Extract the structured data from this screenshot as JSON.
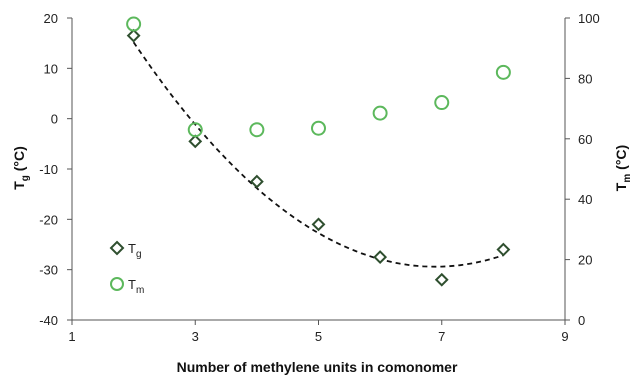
{
  "chart_data": {
    "type": "scatter",
    "xlabel": "Number of methylene units in comonomer",
    "ylabel_left": {
      "main": "T",
      "sub": "g",
      "unit": " (°C)"
    },
    "ylabel_right": {
      "main": "T",
      "sub": "m",
      "unit": " (°C)"
    },
    "xlim": [
      1,
      9
    ],
    "xticks": [
      1,
      3,
      5,
      7,
      9
    ],
    "ylim_left": [
      -40,
      20
    ],
    "yticks_left": [
      -40,
      -30,
      -20,
      -10,
      0,
      10,
      20
    ],
    "ylim_right": [
      0,
      100
    ],
    "yticks_right": [
      0,
      20,
      40,
      60,
      80,
      100
    ],
    "grid": false,
    "legend_position": "left",
    "series": [
      {
        "name": {
          "main": "T",
          "sub": "g"
        },
        "marker": "diamond",
        "axis": "left",
        "color": "#2f4f2f",
        "x": [
          2,
          3,
          4,
          5,
          6,
          7,
          8
        ],
        "y": [
          16.5,
          -4.5,
          -12.5,
          -21,
          -27.5,
          -32,
          -26
        ]
      },
      {
        "name": {
          "main": "T",
          "sub": "m"
        },
        "marker": "circle",
        "axis": "right",
        "color": "#5cb85c",
        "x": [
          2,
          3,
          4,
          5,
          6,
          7,
          8
        ],
        "y": [
          98,
          63,
          63,
          63.5,
          68.5,
          72,
          82
        ]
      }
    ],
    "trendline": {
      "series": "Tg",
      "style": "dashed",
      "type": "polynomial",
      "color": "#111111"
    }
  }
}
